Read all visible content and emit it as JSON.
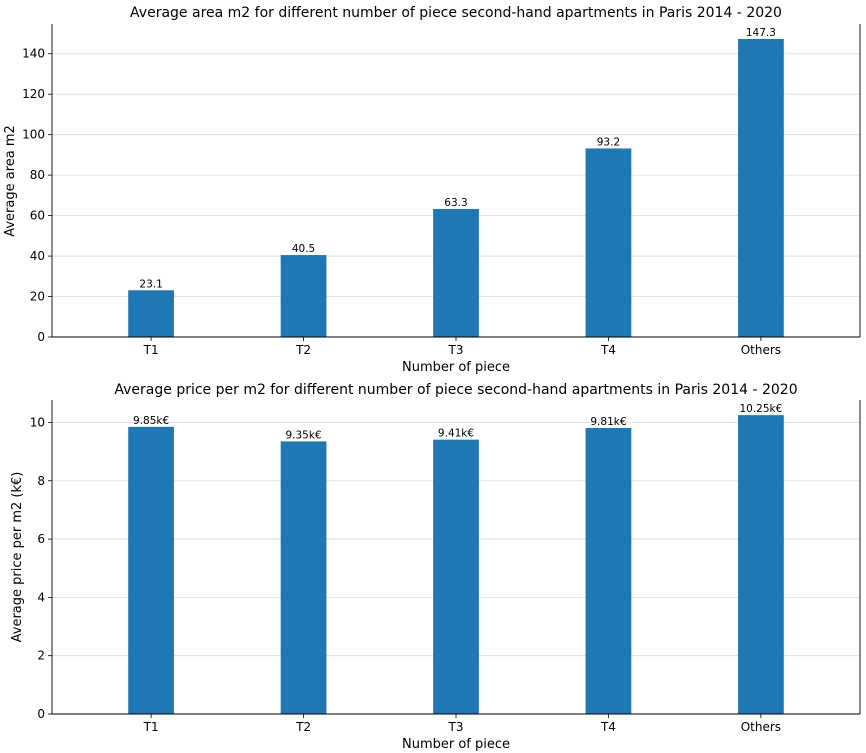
{
  "chart_data": [
    {
      "type": "bar",
      "title": "Average area m2 for different number of piece second-hand apartments in Paris 2014 - 2020",
      "xlabel": "Number of piece",
      "ylabel": "Average area m2",
      "categories": [
        "T1",
        "T2",
        "T3",
        "T4",
        "Others"
      ],
      "values": [
        23.1,
        40.5,
        63.3,
        93.2,
        147.3
      ],
      "data_labels": [
        "23.1",
        "40.5",
        "63.3",
        "93.2",
        "147.3"
      ],
      "ylim": [
        0,
        154.7
      ],
      "yticks": [
        0,
        20,
        40,
        60,
        80,
        100,
        120,
        140
      ],
      "grid": "y",
      "color": "#1f77b4"
    },
    {
      "type": "bar",
      "title": "Average price per m2 for different number of piece second-hand apartments in Paris 2014 - 2020",
      "xlabel": "Number of piece",
      "ylabel": "Average price per m2 (k€)",
      "categories": [
        "T1",
        "T2",
        "T3",
        "T4",
        "Others"
      ],
      "values": [
        9.85,
        9.35,
        9.41,
        9.81,
        10.25
      ],
      "data_labels": [
        "9.85k€",
        "9.35k€",
        "9.41k€",
        "9.81k€",
        "10.25k€"
      ],
      "ylim": [
        0,
        10.77
      ],
      "yticks": [
        0,
        2,
        4,
        6,
        8,
        10
      ],
      "grid": "y",
      "color": "#1f77b4"
    }
  ]
}
